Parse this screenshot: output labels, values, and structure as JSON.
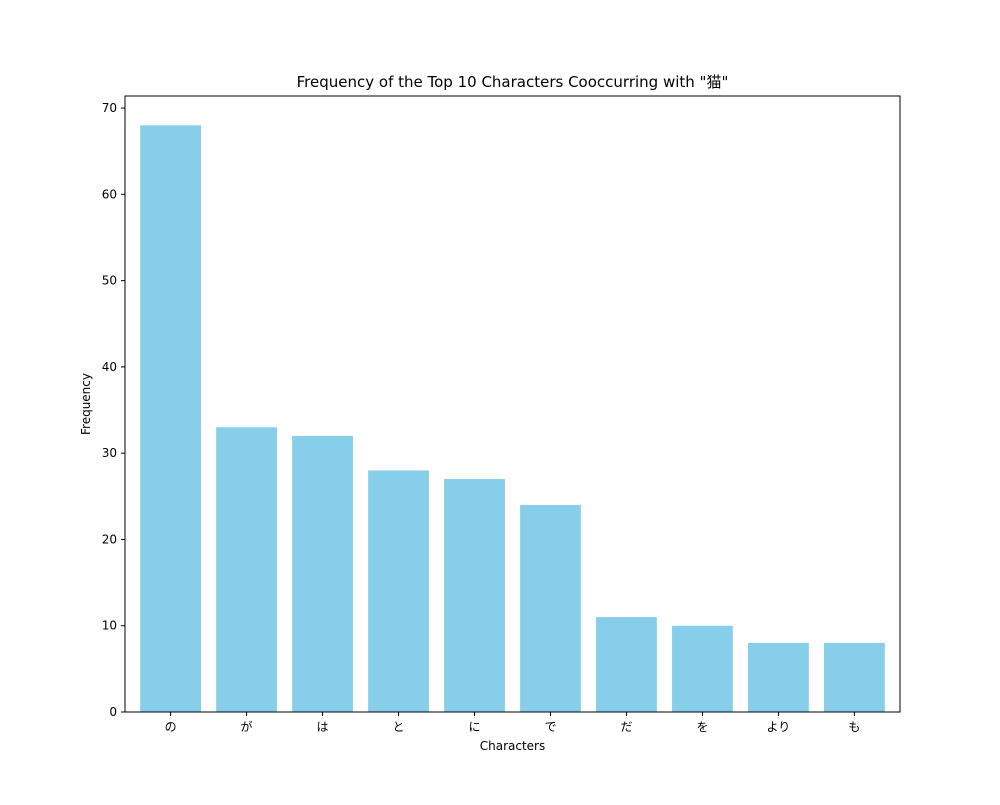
{
  "chart_data": {
    "type": "bar",
    "title": "Frequency of the Top 10 Characters Cooccurring with \"猫\"",
    "xlabel": "Characters",
    "ylabel": "Frequency",
    "categories": [
      "の",
      "が",
      "は",
      "と",
      "に",
      "で",
      "だ",
      "を",
      "より",
      "も"
    ],
    "values": [
      68,
      33,
      32,
      28,
      27,
      24,
      11,
      10,
      8,
      8
    ],
    "ylim": [
      0,
      71.4
    ],
    "yticks": [
      0,
      10,
      20,
      30,
      40,
      50,
      60,
      70
    ],
    "bar_color": "#87ceeb",
    "grid": false,
    "legend": "none"
  }
}
